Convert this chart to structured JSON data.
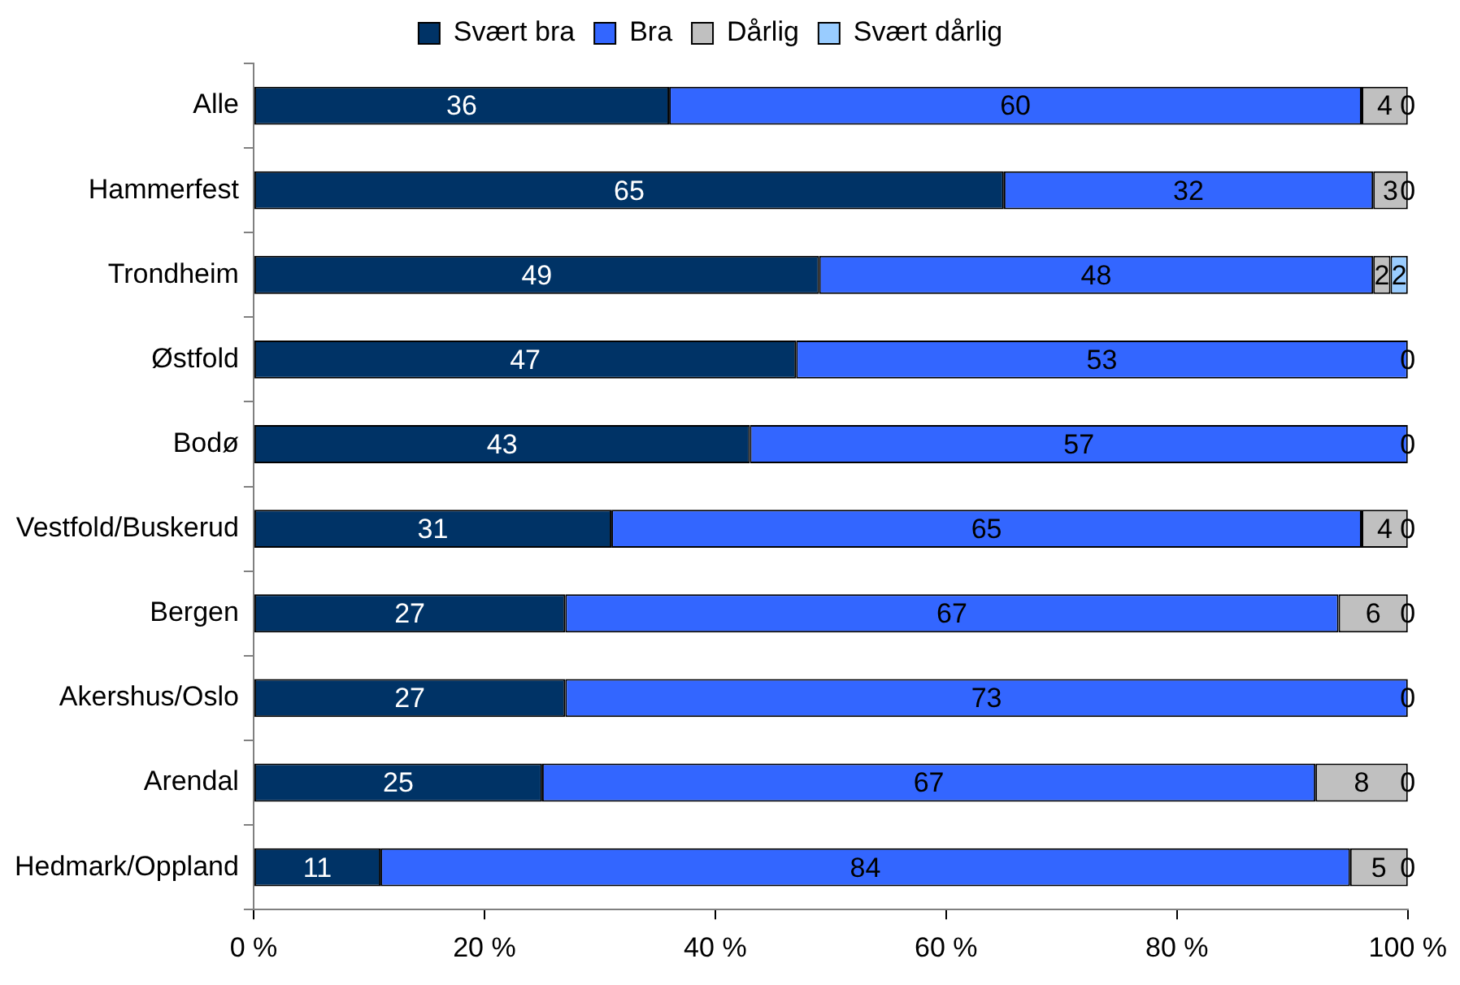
{
  "chart_data": {
    "type": "bar",
    "orientation": "horizontal",
    "stacked": true,
    "legend": "top",
    "grid": false,
    "categories": [
      "Alle",
      "Hammerfest",
      "Trondheim",
      "Østfold",
      "Bodø",
      "Vestfold/Buskerud",
      "Bergen",
      "Akershus/Oslo",
      "Arendal",
      "Hedmark/Oppland"
    ],
    "xlim": [
      0,
      100
    ],
    "xticks": [
      {
        "value": 0,
        "label": "0 %"
      },
      {
        "value": 20,
        "label": "20 %"
      },
      {
        "value": 40,
        "label": "40 %"
      },
      {
        "value": 60,
        "label": "60 %"
      },
      {
        "value": 80,
        "label": "80 %"
      },
      {
        "value": 100,
        "label": "100 %"
      }
    ],
    "series": [
      {
        "name": "Svært bra",
        "color": "#003366",
        "values": [
          36,
          65,
          49,
          47,
          43,
          31,
          27,
          27,
          25,
          11
        ],
        "value_labels": [
          "36",
          "65",
          "49",
          "47",
          "43",
          "31",
          "27",
          "27",
          "25",
          "11"
        ]
      },
      {
        "name": "Bra",
        "color": "#3366ff",
        "values": [
          60,
          32,
          48,
          53,
          57,
          65,
          67,
          73,
          67,
          84
        ],
        "value_labels": [
          "60",
          "32",
          "48",
          "53",
          "57",
          "65",
          "67",
          "73",
          "67",
          "84"
        ]
      },
      {
        "name": "Dårlig",
        "color": "#c0c0c0",
        "values": [
          4,
          3,
          1.5,
          0,
          0,
          4,
          6,
          0,
          8,
          5
        ],
        "value_labels": [
          "4",
          "3",
          "2",
          null,
          null,
          "4",
          "6",
          null,
          "8",
          "5"
        ]
      },
      {
        "name": "Svært dårlig",
        "color": "#99ccff",
        "values": [
          0,
          0,
          1.5,
          0,
          0,
          0,
          0,
          0,
          0,
          0
        ],
        "value_labels": [
          "0",
          "0",
          "2",
          "0",
          "0",
          "0",
          "0",
          "0",
          "0",
          "0"
        ]
      }
    ]
  }
}
